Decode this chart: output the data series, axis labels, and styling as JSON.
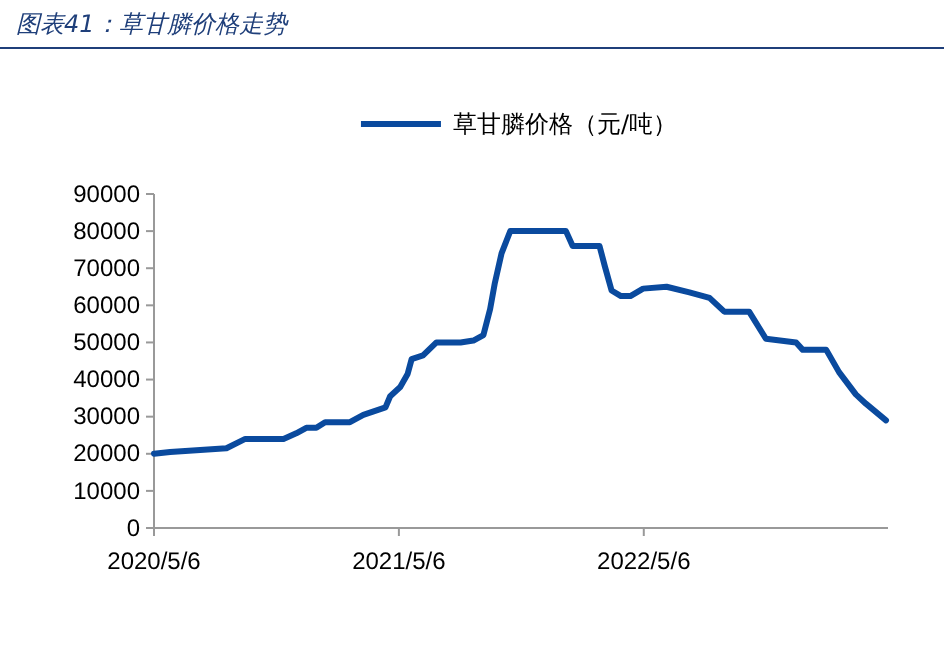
{
  "chart_data": {
    "type": "line",
    "title": "图表41：草甘膦价格走势",
    "x": [
      "2020-05-06",
      "2020-05-30",
      "2020-08-22",
      "2020-09-19",
      "2020-11-15",
      "2020-12-04",
      "2020-12-19",
      "2021-01-03",
      "2021-01-16",
      "2021-02-22",
      "2021-03-14",
      "2021-04-16",
      "2021-04-23",
      "2021-05-08",
      "2021-05-19",
      "2021-05-25",
      "2021-06-11",
      "2021-07-01",
      "2021-08-06",
      "2021-08-25",
      "2021-09-09",
      "2021-09-19",
      "2021-09-26",
      "2021-10-06",
      "2021-10-19",
      "2022-01-10",
      "2022-01-20",
      "2022-03-01",
      "2022-03-09",
      "2022-03-19",
      "2022-04-02",
      "2022-04-16",
      "2022-05-05",
      "2022-06-09",
      "2022-07-13",
      "2022-08-12",
      "2022-09-03",
      "2022-10-10",
      "2022-11-04",
      "2022-12-19",
      "2022-12-29",
      "2023-02-02",
      "2023-02-21",
      "2023-03-18",
      "2023-04-02",
      "2023-05-02"
    ],
    "series": [
      {
        "name": "草甘膦价格（元/吨）",
        "color": "#0a4a9e",
        "values": [
          20000,
          20500,
          21500,
          24000,
          24000,
          25500,
          27000,
          27000,
          28500,
          28500,
          30500,
          32500,
          35500,
          38000,
          41500,
          45500,
          46500,
          50000,
          50000,
          50500,
          52000,
          59000,
          66000,
          74000,
          80000,
          80000,
          76000,
          76000,
          70500,
          64000,
          62500,
          62500,
          64500,
          65000,
          63500,
          62000,
          58300,
          58300,
          51000,
          50000,
          48000,
          48000,
          42000,
          36000,
          33500,
          29000
        ]
      }
    ],
    "xlim": [
      "2020-05-06",
      "2023-05-05"
    ],
    "xticks": [
      {
        "value": "2020-05-06",
        "label": "2020/5/6"
      },
      {
        "value": "2021-05-06",
        "label": "2021/5/6"
      },
      {
        "value": "2022-05-06",
        "label": "2022/5/6"
      }
    ],
    "ylim": [
      0,
      90000
    ],
    "yticks": [
      0,
      10000,
      20000,
      30000,
      40000,
      50000,
      60000,
      70000,
      80000,
      90000
    ],
    "grid": false,
    "legend": "top",
    "marker": "none",
    "line_style": "solid"
  }
}
